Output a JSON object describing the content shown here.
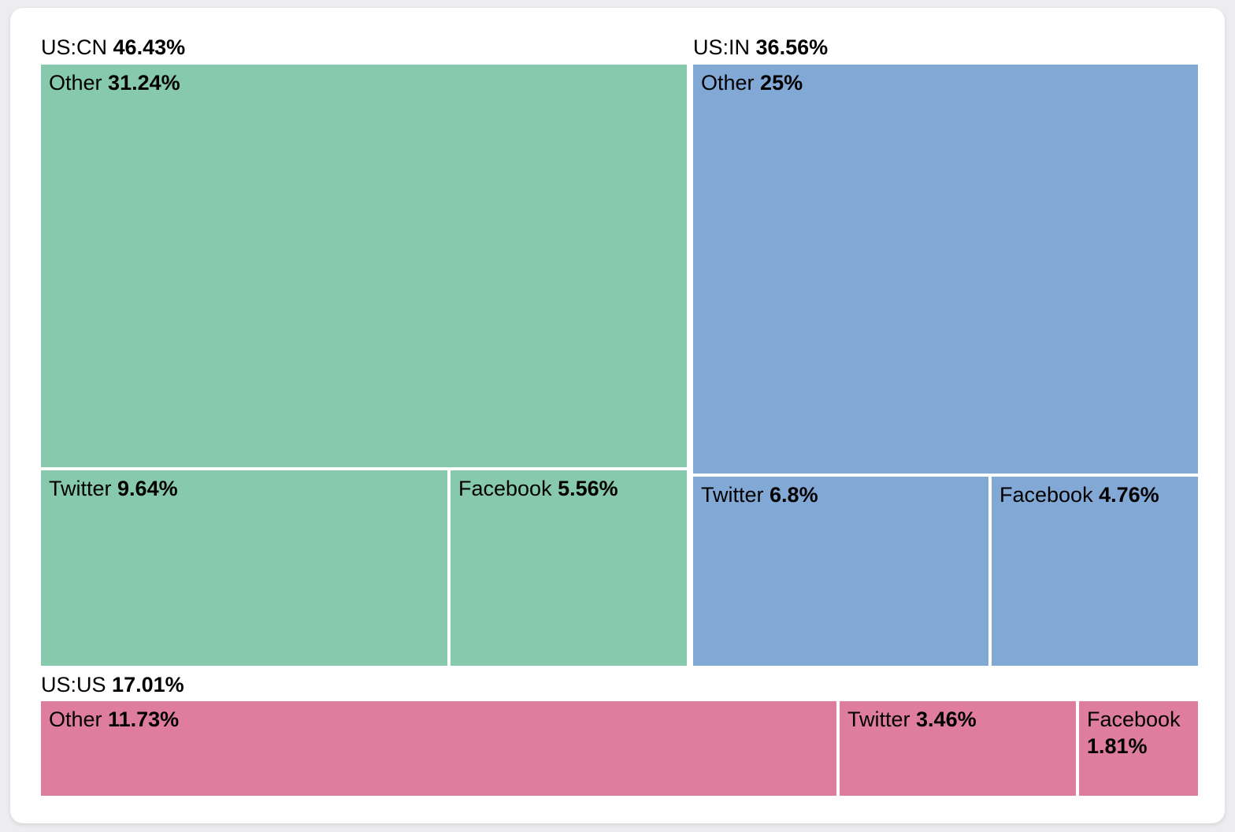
{
  "page": {
    "background_color": "#ededf0",
    "card_background_color": "#ffffff",
    "text_color": "#000000"
  },
  "chart_data": {
    "type": "treemap",
    "title": "",
    "unit": "%",
    "layout": {
      "top_row_groups": [
        "US:CN",
        "US:IN"
      ],
      "bottom_row_groups": [
        "US:US"
      ],
      "gap_color": "#ffffff",
      "labels_position": "top-left"
    },
    "groups": [
      {
        "label": "US:CN",
        "value": 46.43,
        "value_label": "46.43%",
        "color": "#87c9ac",
        "children": [
          {
            "name": "Other",
            "value": 31.24,
            "value_label": "31.24%"
          },
          {
            "name": "Twitter",
            "value": 9.64,
            "value_label": "9.64%"
          },
          {
            "name": "Facebook",
            "value": 5.56,
            "value_label": "5.56%"
          }
        ]
      },
      {
        "label": "US:IN",
        "value": 36.56,
        "value_label": "36.56%",
        "color": "#82a9d6",
        "children": [
          {
            "name": "Other",
            "value": 25,
            "value_label": "25%"
          },
          {
            "name": "Twitter",
            "value": 6.8,
            "value_label": "6.8%"
          },
          {
            "name": "Facebook",
            "value": 4.76,
            "value_label": "4.76%"
          }
        ]
      },
      {
        "label": "US:US",
        "value": 17.01,
        "value_label": "17.01%",
        "color": "#df7d9e",
        "children": [
          {
            "name": "Other",
            "value": 11.73,
            "value_label": "11.73%"
          },
          {
            "name": "Twitter",
            "value": 3.46,
            "value_label": "3.46%"
          },
          {
            "name": "Facebook",
            "value": 1.81,
            "value_label": "1.81%"
          }
        ]
      }
    ]
  }
}
